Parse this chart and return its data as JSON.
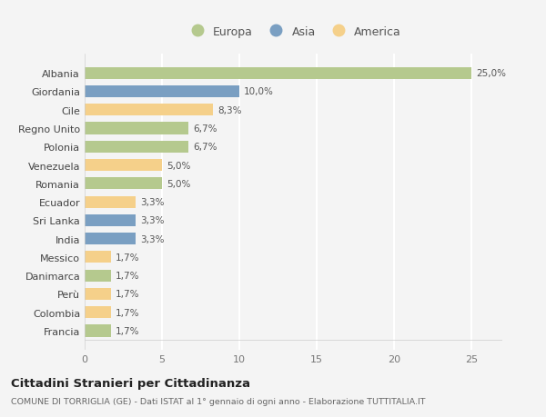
{
  "countries": [
    "Albania",
    "Giordania",
    "Cile",
    "Regno Unito",
    "Polonia",
    "Venezuela",
    "Romania",
    "Ecuador",
    "Sri Lanka",
    "India",
    "Messico",
    "Danimarca",
    "Perù",
    "Colombia",
    "Francia"
  ],
  "values": [
    25.0,
    10.0,
    8.3,
    6.7,
    6.7,
    5.0,
    5.0,
    3.3,
    3.3,
    3.3,
    1.7,
    1.7,
    1.7,
    1.7,
    1.7
  ],
  "labels": [
    "25,0%",
    "10,0%",
    "8,3%",
    "6,7%",
    "6,7%",
    "5,0%",
    "5,0%",
    "3,3%",
    "3,3%",
    "3,3%",
    "1,7%",
    "1,7%",
    "1,7%",
    "1,7%",
    "1,7%"
  ],
  "categories": [
    "Europa",
    "Asia",
    "America"
  ],
  "continent": [
    "Europa",
    "Asia",
    "America",
    "Europa",
    "Europa",
    "America",
    "Europa",
    "America",
    "Asia",
    "Asia",
    "America",
    "Europa",
    "America",
    "America",
    "Europa"
  ],
  "colors": {
    "Europa": "#b5c98e",
    "Asia": "#7a9fc2",
    "America": "#f5d08a"
  },
  "background_color": "#f4f4f4",
  "title": "Cittadini Stranieri per Cittadinanza",
  "subtitle": "COMUNE DI TORRIGLIA (GE) - Dati ISTAT al 1° gennaio di ogni anno - Elaborazione TUTTITALIA.IT",
  "xlim": [
    0,
    27
  ],
  "xticks": [
    0,
    5,
    10,
    15,
    20,
    25
  ]
}
